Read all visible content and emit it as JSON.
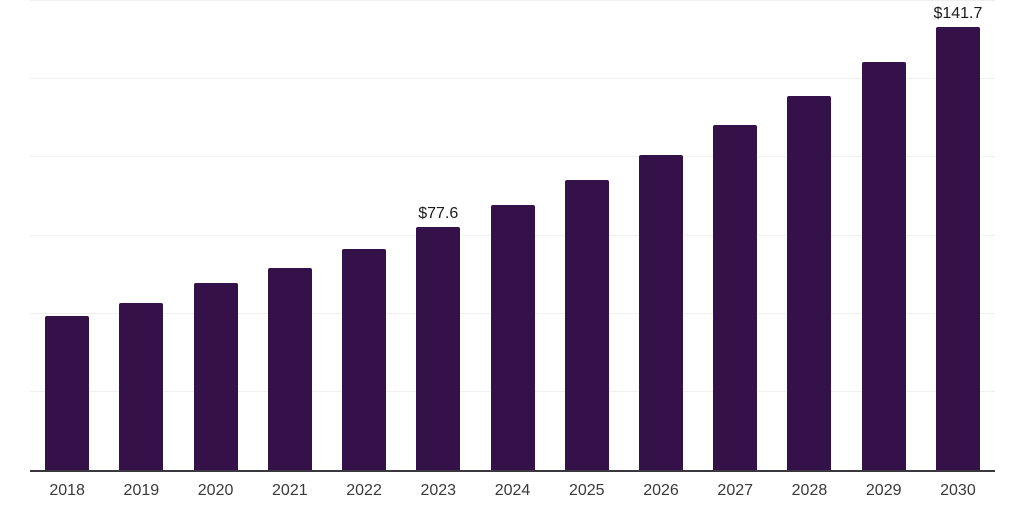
{
  "chart_data": {
    "type": "bar",
    "title": "",
    "xlabel": "",
    "ylabel": "",
    "categories": [
      "2018",
      "2019",
      "2020",
      "2021",
      "2022",
      "2023",
      "2024",
      "2025",
      "2026",
      "2027",
      "2028",
      "2029",
      "2030"
    ],
    "values": [
      49.4,
      53.4,
      59.8,
      64.6,
      70.7,
      77.6,
      84.9,
      92.7,
      100.8,
      110.2,
      119.6,
      130.5,
      141.7
    ],
    "data_labels": {
      "2023": "$77.6",
      "2030": "$141.7"
    },
    "ylim": [
      0,
      150
    ],
    "gridline_step": 25,
    "grid": "horizontal",
    "legend": "none",
    "yaxis_tick_labels": "none",
    "colors": {
      "bar": "#341249",
      "gridline": "#f0f0f0",
      "axis_line": "#3a3740",
      "data_label": "#1c1c1c",
      "tick_label": "#3a3a3a",
      "background": "#ffffff"
    }
  }
}
